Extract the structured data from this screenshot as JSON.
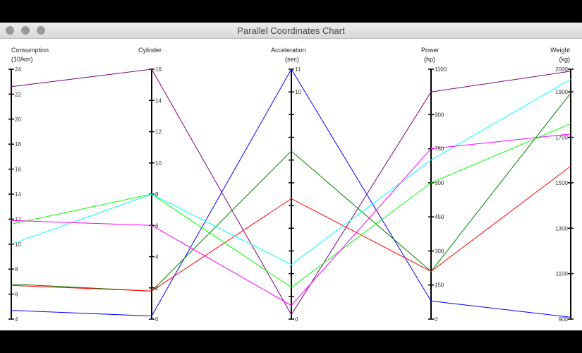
{
  "window": {
    "title": "Parallel Coordinates Chart"
  },
  "chart_data": {
    "type": "parallel-coordinates",
    "axes": [
      {
        "name": "Consumption",
        "unit": "(10/km)",
        "min": 4,
        "max": 24,
        "ticks": [
          4,
          6,
          8,
          10,
          12,
          14,
          16,
          18,
          20,
          22,
          24
        ]
      },
      {
        "name": "Cylinder",
        "unit": "",
        "min": 0,
        "max": 16,
        "ticks": [
          0,
          2,
          4,
          6,
          8,
          10,
          12,
          14,
          16
        ]
      },
      {
        "name": "Acceleration",
        "unit": "(sec)",
        "min": 0,
        "max": 11,
        "ticks": [
          0,
          1,
          2,
          3,
          4,
          5,
          6,
          7,
          8,
          9,
          10,
          11
        ],
        "tick_labels": [
          "0",
          "",
          "",
          "",
          "",
          "",
          "",
          "",
          "",
          "",
          "10",
          "11"
        ]
      },
      {
        "name": "Power",
        "unit": "(hp)",
        "min": 0,
        "max": 1100,
        "ticks": [
          0,
          150,
          300,
          450,
          600,
          750,
          900,
          1100
        ],
        "tick_labels": [
          "0",
          "150",
          "300",
          "450",
          "600",
          "750",
          "900",
          "1100"
        ]
      },
      {
        "name": "Weight",
        "unit": "(kg)",
        "min": 900,
        "max": 2000,
        "ticks": [
          900,
          1100,
          1300,
          1500,
          1700,
          1900,
          2000
        ]
      }
    ],
    "series": [
      {
        "color": "#800080",
        "values": [
          22.6,
          16,
          0.2,
          1000,
          1991
        ]
      },
      {
        "color": "#0000ff",
        "values": [
          4.7,
          0.2,
          11.0,
          80,
          908
        ]
      },
      {
        "color": "#008000",
        "values": [
          6.8,
          1.8,
          7.4,
          210,
          1895
        ]
      },
      {
        "color": "#ff0000",
        "values": [
          6.7,
          1.8,
          5.3,
          210,
          1573
        ]
      },
      {
        "color": "#00ff00",
        "values": [
          11.6,
          8.0,
          1.4,
          600,
          1760
        ]
      },
      {
        "color": "#00ffff",
        "values": [
          10.0,
          8.0,
          2.4,
          700,
          1956
        ]
      },
      {
        "color": "#ff00ff",
        "values": [
          11.9,
          6.0,
          0.6,
          750,
          1715
        ]
      }
    ]
  }
}
